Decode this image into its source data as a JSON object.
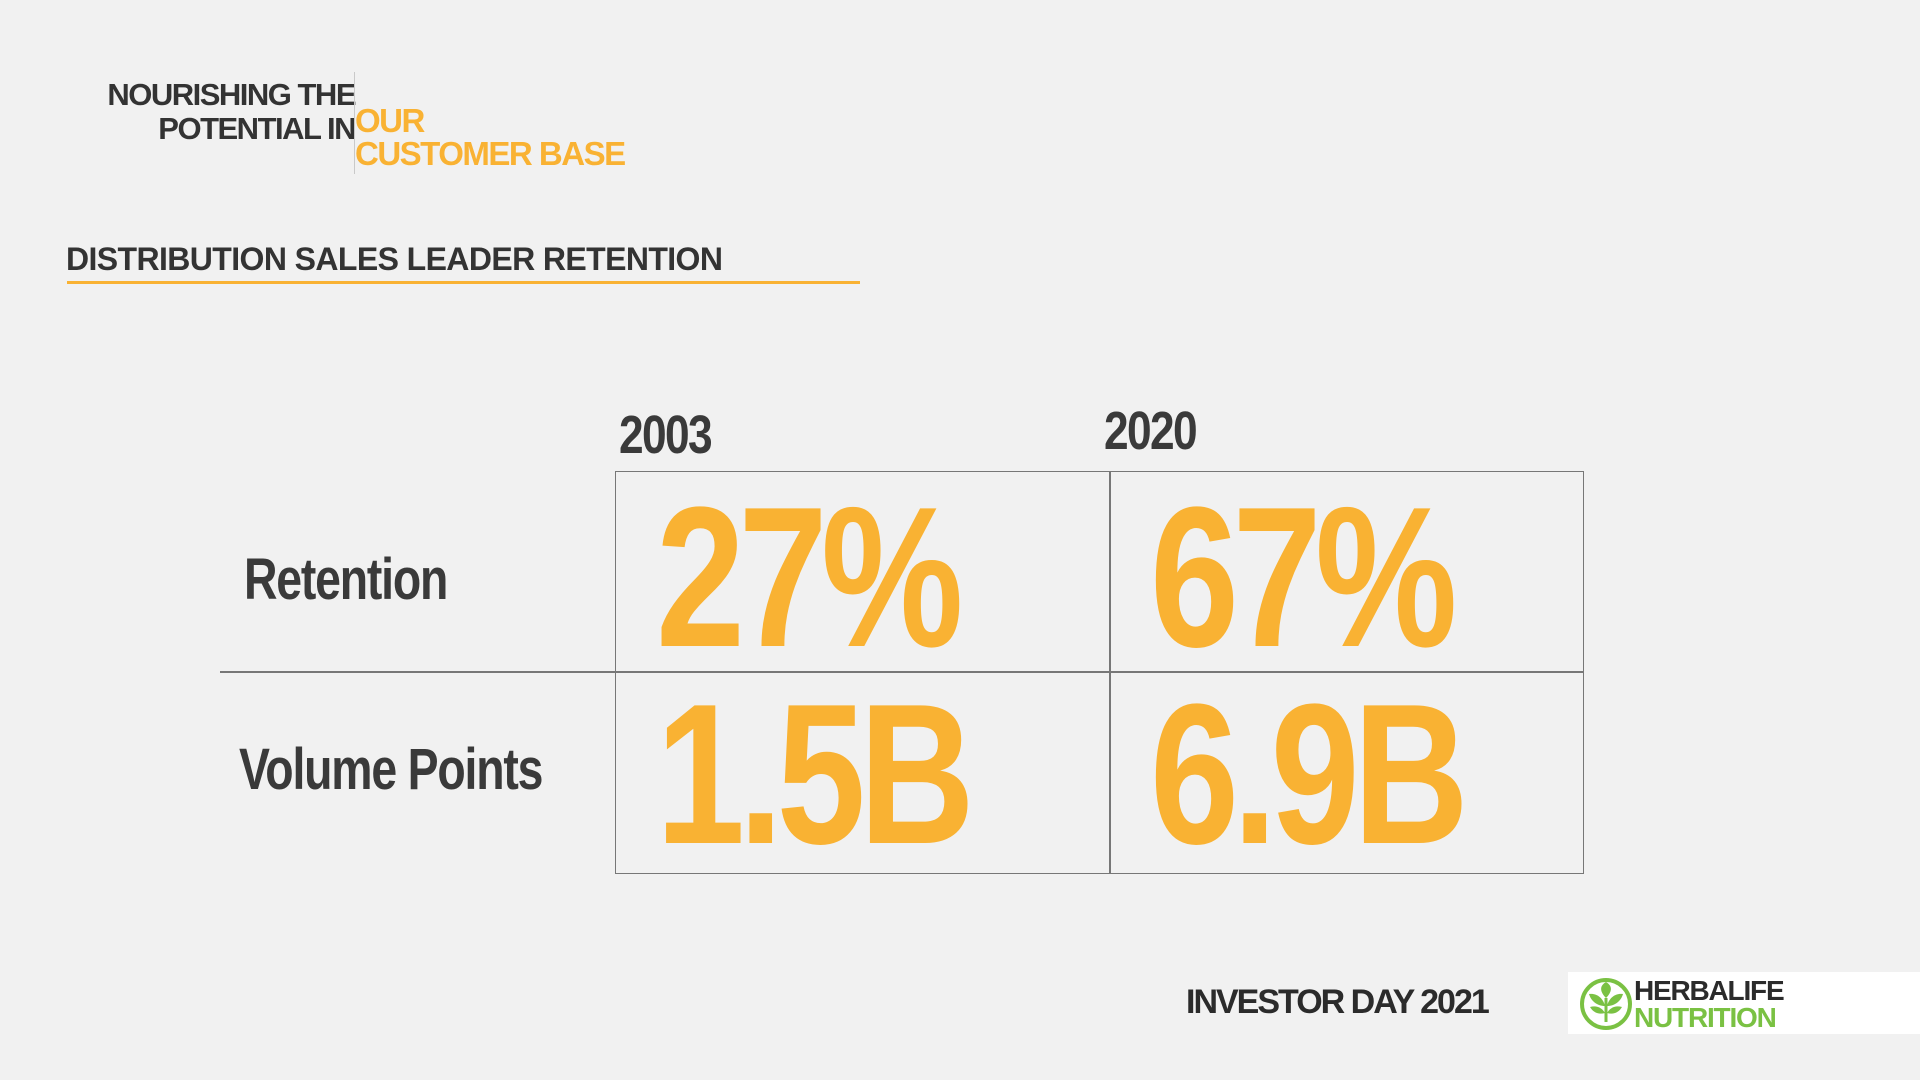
{
  "header": {
    "left_line1": "NOURISHING THE",
    "left_line2": "POTENTIAL IN",
    "right_line1": "OUR",
    "right_line2": "CUSTOMER BASE"
  },
  "section": {
    "title": "DISTRIBUTION SALES LEADER RETENTION"
  },
  "table": {
    "columns": [
      "2003",
      "2020"
    ],
    "rows": [
      {
        "label": "Retention",
        "values": [
          "27%",
          "67%"
        ]
      },
      {
        "label": "Volume Points",
        "values": [
          "1.5B",
          "6.9B"
        ]
      }
    ]
  },
  "footer": {
    "event": "INVESTOR DAY 2021",
    "logo_line1": "HERBALIFE",
    "logo_line2": "NUTRITION",
    "logo_icon": "herbalife-leaf-icon"
  },
  "colors": {
    "accent": "#f9b233",
    "text": "#3a3a3a",
    "background": "#f1f1f1",
    "brand_green": "#7ac143"
  }
}
